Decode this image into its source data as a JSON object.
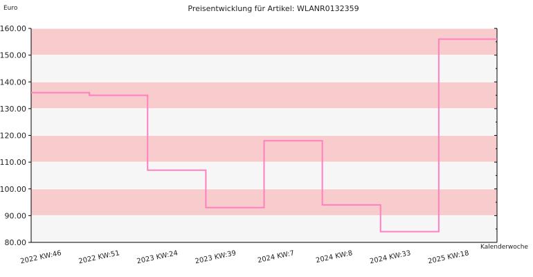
{
  "chart_data": {
    "type": "line",
    "step": true,
    "title": "Preisentwicklung für Artikel: WLANR0132359",
    "ylabel": "Euro",
    "xlabel": "Kalenderwoche",
    "ylim": [
      80,
      160
    ],
    "yticks": [
      80,
      90,
      100,
      110,
      120,
      130,
      140,
      150,
      160
    ],
    "ytick_labels": [
      "80.00",
      "90.00",
      "100.00",
      "110.00",
      "120.00",
      "130.00",
      "140.00",
      "150.00",
      "160.00"
    ],
    "categories": [
      "2022 KW:46",
      "2022 KW:51",
      "2023 KW:24",
      "2023 KW:39",
      "2024 KW:7",
      "2024 KW:8",
      "2024 KW:33",
      "2025 KW:18"
    ],
    "series": [
      {
        "values": [
          136,
          135,
          107,
          93,
          118,
          94,
          84,
          156
        ]
      }
    ],
    "grid": true,
    "bands": true,
    "colors": {
      "line": "#ff7fbf",
      "band_dark": "#f8cccc",
      "band_light": "#f6f6f6",
      "axis": "#000000"
    }
  }
}
